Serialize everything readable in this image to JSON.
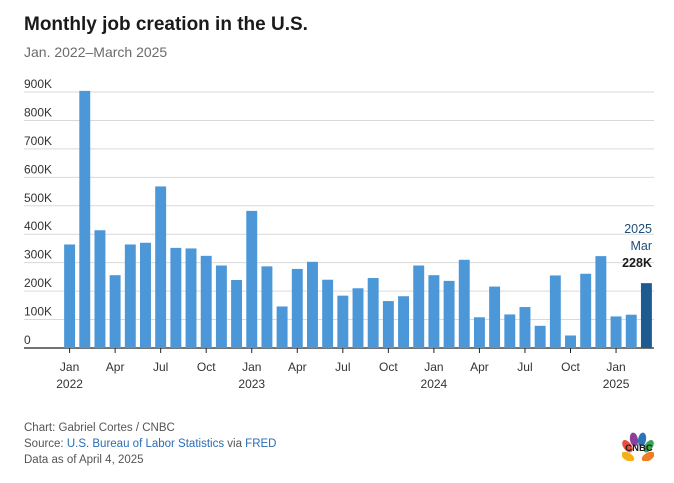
{
  "title": "Monthly job creation in the U.S.",
  "subtitle": "Jan. 2022–March 2025",
  "colors": {
    "bar": "#4c97d7",
    "highlight": "#1c5a90",
    "grid": "#d9d9d9",
    "annotation": "#1f4e79"
  },
  "annotation": {
    "year": "2025",
    "month": "Mar",
    "value": "228K"
  },
  "footer": {
    "chart_credit": "Chart: Gabriel Cortes / CNBC",
    "source_prefix": "Source: ",
    "source_link": "U.S. Bureau of Labor Statistics",
    "source_via": " via ",
    "source_link2": "FRED",
    "data_as_of": "Data as of April 4, 2025"
  },
  "logo": {
    "icon": "cnbc-peacock-icon",
    "text": "CNBC"
  },
  "chart_data": {
    "type": "bar",
    "ylim": [
      0,
      900000
    ],
    "yticks": [
      {
        "value": 0,
        "label": "0"
      },
      {
        "value": 100000,
        "label": "100K"
      },
      {
        "value": 200000,
        "label": "200K"
      },
      {
        "value": 300000,
        "label": "300K"
      },
      {
        "value": 400000,
        "label": "400K"
      },
      {
        "value": 500000,
        "label": "500K"
      },
      {
        "value": 600000,
        "label": "600K"
      },
      {
        "value": 700000,
        "label": "700K"
      },
      {
        "value": 800000,
        "label": "800K"
      },
      {
        "value": 900000,
        "label": "900K"
      }
    ],
    "categories": [
      "2022-01",
      "2022-02",
      "2022-03",
      "2022-04",
      "2022-05",
      "2022-06",
      "2022-07",
      "2022-08",
      "2022-09",
      "2022-10",
      "2022-11",
      "2022-12",
      "2023-01",
      "2023-02",
      "2023-03",
      "2023-04",
      "2023-05",
      "2023-06",
      "2023-07",
      "2023-08",
      "2023-09",
      "2023-10",
      "2023-11",
      "2023-12",
      "2024-01",
      "2024-02",
      "2024-03",
      "2024-04",
      "2024-05",
      "2024-06",
      "2024-07",
      "2024-08",
      "2024-09",
      "2024-10",
      "2024-11",
      "2024-12",
      "2025-01",
      "2025-02",
      "2025-03"
    ],
    "values": [
      364000,
      904000,
      414000,
      256000,
      364000,
      370000,
      568000,
      352000,
      350000,
      324000,
      290000,
      239000,
      482000,
      287000,
      146000,
      278000,
      303000,
      240000,
      184000,
      210000,
      246000,
      165000,
      182000,
      290000,
      256000,
      236000,
      310000,
      108000,
      216000,
      118000,
      144000,
      78000,
      255000,
      44000,
      261000,
      323000,
      111000,
      117000,
      228000
    ],
    "highlight_index": 38,
    "xticks": [
      {
        "index": 0,
        "month": "Jan",
        "year": "2022"
      },
      {
        "index": 3,
        "month": "Apr",
        "year": ""
      },
      {
        "index": 6,
        "month": "Jul",
        "year": ""
      },
      {
        "index": 9,
        "month": "Oct",
        "year": ""
      },
      {
        "index": 12,
        "month": "Jan",
        "year": "2023"
      },
      {
        "index": 15,
        "month": "Apr",
        "year": ""
      },
      {
        "index": 18,
        "month": "Jul",
        "year": ""
      },
      {
        "index": 21,
        "month": "Oct",
        "year": ""
      },
      {
        "index": 24,
        "month": "Jan",
        "year": "2024"
      },
      {
        "index": 27,
        "month": "Apr",
        "year": ""
      },
      {
        "index": 30,
        "month": "Jul",
        "year": ""
      },
      {
        "index": 33,
        "month": "Oct",
        "year": ""
      },
      {
        "index": 36,
        "month": "Jan",
        "year": "2025"
      }
    ],
    "grid": true,
    "legend": "none"
  }
}
